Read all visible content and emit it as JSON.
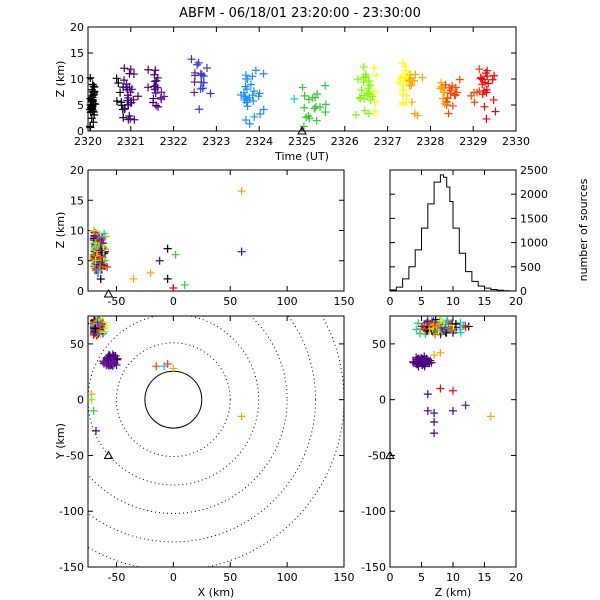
{
  "title": "ABFM - 06/18/01 23:20:00 - 23:30:00",
  "colors": {
    "spectrum": [
      "#000000",
      "#4b0082",
      "#6a1b9a",
      "#2e3bd6",
      "#1e90ff",
      "#00ced1",
      "#32cd32",
      "#7fff00",
      "#ffff00",
      "#ffa500",
      "#ff4500",
      "#ff0000"
    ]
  },
  "chart_data": [
    {
      "id": "time-height",
      "type": "scatter",
      "xlabel": "Time (UT)",
      "ylabel": "Z (km)",
      "xlim": [
        2320,
        2330
      ],
      "ylim": [
        0,
        20
      ],
      "xticks": [
        "2320",
        "2321",
        "2322",
        "2323",
        "2324",
        "2325",
        "2326",
        "2327",
        "2328",
        "2329",
        "2330"
      ],
      "yticks": [
        "0",
        "5",
        "10",
        "15",
        "20"
      ],
      "station_marker": {
        "x": 2325,
        "y": 0
      },
      "clusters": [
        {
          "x": 2320.1,
          "y": 5,
          "spread_x": 0.15,
          "spread_y": 7,
          "n": 40
        },
        {
          "x": 2320.9,
          "y": 7,
          "spread_x": 0.3,
          "spread_y": 7,
          "n": 35
        },
        {
          "x": 2321.6,
          "y": 8,
          "spread_x": 0.3,
          "spread_y": 6,
          "n": 20
        },
        {
          "x": 2322.6,
          "y": 9,
          "spread_x": 0.4,
          "spread_y": 6,
          "n": 18
        },
        {
          "x": 2323.8,
          "y": 8,
          "spread_x": 0.4,
          "spread_y": 7,
          "n": 28
        },
        {
          "x": 2325.2,
          "y": 5,
          "spread_x": 0.5,
          "spread_y": 6,
          "n": 20
        },
        {
          "x": 2326.5,
          "y": 8,
          "spread_x": 0.4,
          "spread_y": 8,
          "n": 28
        },
        {
          "x": 2327.5,
          "y": 9,
          "spread_x": 0.4,
          "spread_y": 7,
          "n": 30
        },
        {
          "x": 2328.4,
          "y": 7,
          "spread_x": 0.35,
          "spread_y": 6,
          "n": 25
        },
        {
          "x": 2329.3,
          "y": 8,
          "spread_x": 0.4,
          "spread_y": 8,
          "n": 25
        }
      ]
    },
    {
      "id": "x-height",
      "type": "scatter",
      "xlabel": "",
      "ylabel": "Z (km)",
      "xlim": [
        -75,
        150
      ],
      "ylim": [
        0,
        20
      ],
      "xticks": [
        "-50",
        "0",
        "50",
        "100",
        "150"
      ],
      "yticks": [
        "0",
        "5",
        "10",
        "15",
        "20"
      ],
      "station_marker": {
        "x": -57,
        "y": -0.5
      }
    },
    {
      "id": "height-histogram",
      "type": "line",
      "xlabel": "",
      "ylabel": "number of sources",
      "xlim": [
        0,
        20
      ],
      "ylim": [
        0,
        2500
      ],
      "xticks": [
        "0",
        "5",
        "10",
        "15",
        "20"
      ],
      "yticks": [
        "0",
        "500",
        "1000",
        "1500",
        "2000",
        "2500"
      ],
      "x": [
        1,
        2,
        3,
        4,
        5,
        6,
        7,
        8,
        8.5,
        9,
        9.5,
        10,
        11,
        12,
        13,
        14,
        15,
        16,
        17,
        18,
        19,
        20
      ],
      "values": [
        20,
        80,
        250,
        500,
        850,
        1300,
        1800,
        2250,
        2400,
        2350,
        2150,
        1850,
        1300,
        780,
        400,
        200,
        100,
        60,
        30,
        15,
        5,
        0
      ]
    },
    {
      "id": "plan-view",
      "type": "scatter",
      "xlabel": "X (km)",
      "ylabel": "Y (km)",
      "xlim": [
        -75,
        150
      ],
      "ylim": [
        -150,
        75
      ],
      "xticks": [
        "-50",
        "0",
        "50",
        "100",
        "150"
      ],
      "yticks": [
        "-150",
        "-100",
        "-50",
        "0",
        "50"
      ],
      "station_marker": {
        "x": -57,
        "y": -50
      },
      "range_rings_km": [
        25,
        50,
        75,
        100,
        125,
        150
      ]
    },
    {
      "id": "height-y",
      "type": "scatter",
      "xlabel": "Z (km)",
      "ylabel": "",
      "xlim": [
        0,
        20
      ],
      "ylim": [
        -150,
        75
      ],
      "xticks": [
        "0",
        "5",
        "10",
        "15",
        "20"
      ],
      "yticks": [
        "-150",
        "-100",
        "-50",
        "0",
        "50"
      ],
      "station_marker": {
        "x": 0,
        "y": -50
      }
    }
  ]
}
